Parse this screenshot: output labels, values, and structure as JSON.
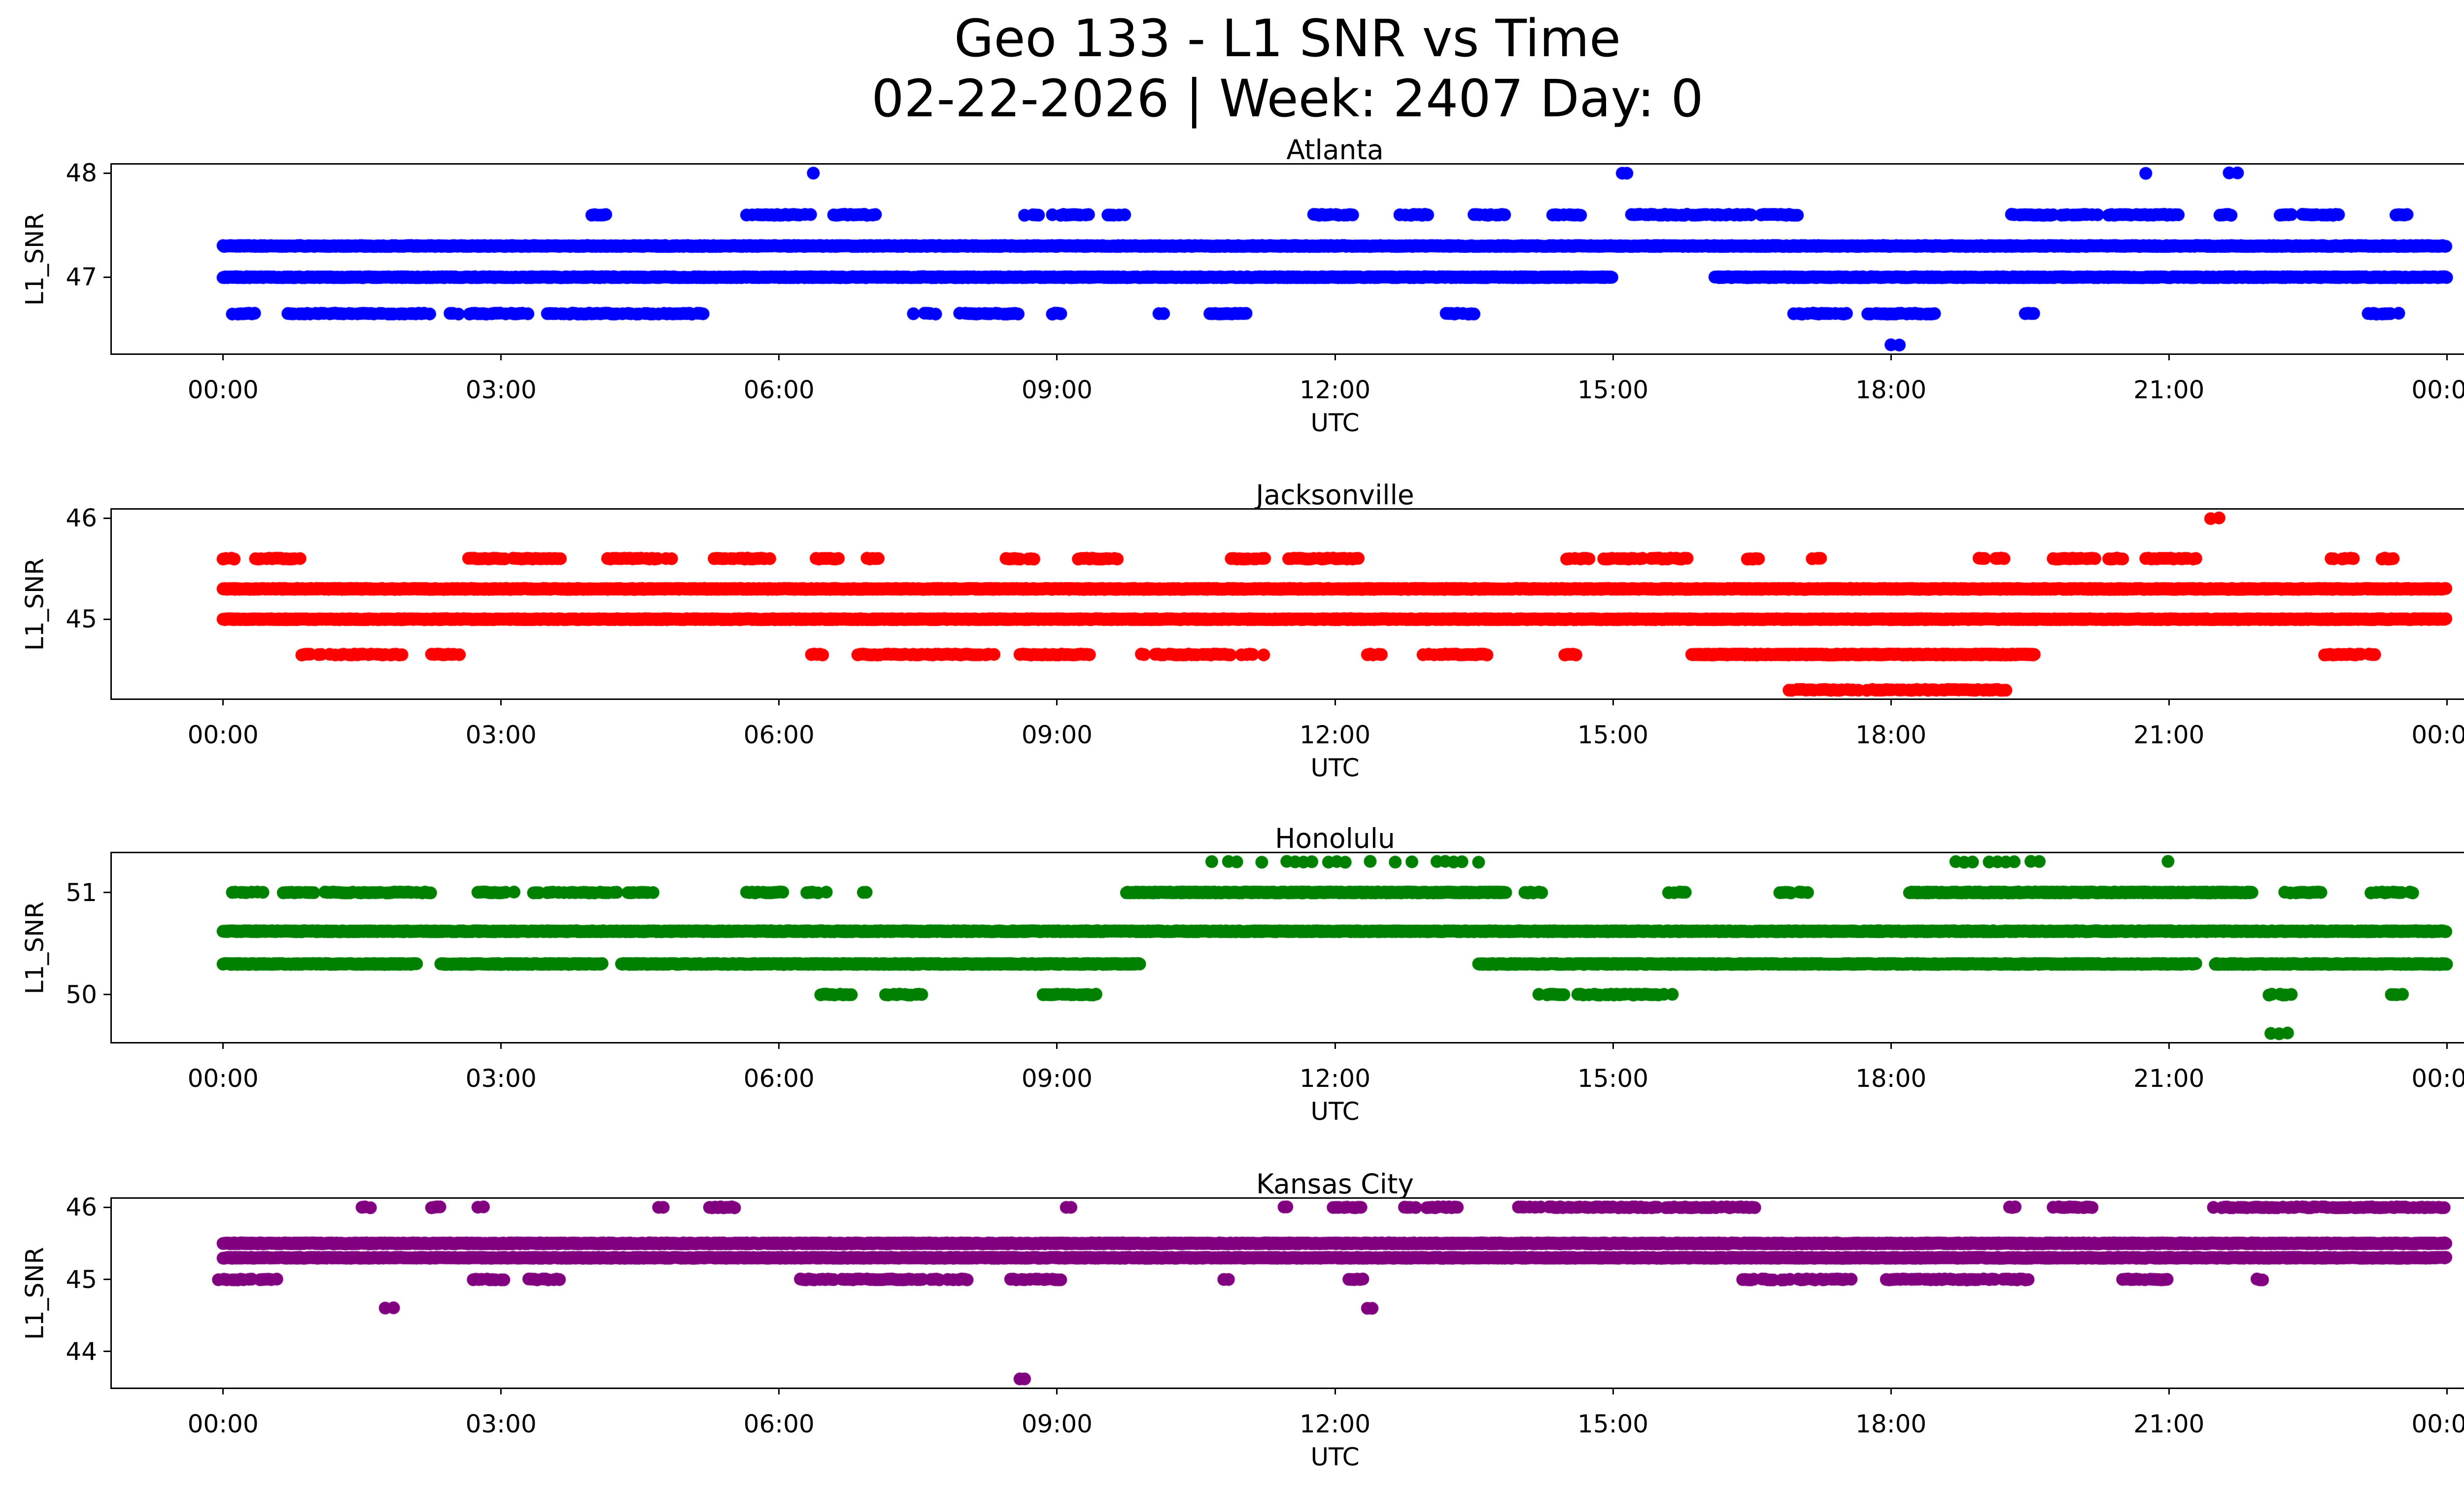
{
  "figure": {
    "title_line1": "Geo 133 - L1 SNR vs Time",
    "title_line2": "02-22-2026 | Week: 2407 Day: 0",
    "background": "#ffffff",
    "text_color": "#000000"
  },
  "chart_data": [
    {
      "type": "scatter",
      "title": "Atlanta",
      "color": "#0000ff",
      "xlabel": "UTC",
      "ylabel": "L1_SNR",
      "xlim": [
        -1.2,
        25.2
      ],
      "ylim": [
        46.2675,
        48.0825
      ],
      "yticks": [
        47,
        48
      ],
      "xticks": [
        0,
        3,
        6,
        9,
        12,
        15,
        18,
        21,
        24
      ],
      "xtick_labels": [
        "00:00",
        "03:00",
        "06:00",
        "09:00",
        "12:00",
        "15:00",
        "18:00",
        "21:00",
        "00:00"
      ],
      "grid": false,
      "legend": false,
      "bands": [
        {
          "snr": 47.3,
          "density": "dense",
          "segments": [
            [
              0,
              24
            ]
          ]
        },
        {
          "snr": 47.0,
          "density": "dense",
          "segments": [
            [
              0,
              15.0
            ],
            [
              16.1,
              24
            ]
          ]
        },
        {
          "snr": 47.6,
          "density": "med",
          "segments": [
            [
              3.95,
              4.15
            ],
            [
              5.65,
              6.35
            ],
            [
              6.5,
              7.05
            ],
            [
              8.65,
              8.8
            ],
            [
              8.95,
              9.35
            ],
            [
              9.55,
              9.75
            ],
            [
              11.65,
              12.2
            ],
            [
              12.7,
              13.0
            ],
            [
              13.5,
              13.85
            ],
            [
              14.35,
              14.65
            ],
            [
              15.2,
              16.5
            ],
            [
              16.6,
              17.05
            ],
            [
              19.3,
              21.15
            ],
            [
              21.55,
              21.7
            ],
            [
              22.2,
              22.85
            ],
            [
              23.45,
              23.6
            ]
          ]
        },
        {
          "snr": 48.0,
          "density": "scatter",
          "segments": [
            [
              6.28,
              6.4
            ],
            [
              14.75,
              14.95
            ],
            [
              15.05,
              15.15
            ],
            [
              20.75,
              20.95
            ],
            [
              21.65,
              21.78
            ]
          ]
        },
        {
          "snr": 46.65,
          "density": "med",
          "segments": [
            [
              0.1,
              0.35
            ],
            [
              0.7,
              2.25
            ],
            [
              2.45,
              3.3
            ],
            [
              3.5,
              5.2
            ],
            [
              7.45,
              7.7
            ],
            [
              7.95,
              8.6
            ],
            [
              8.95,
              9.05
            ],
            [
              10.05,
              10.15
            ],
            [
              10.65,
              11.05
            ],
            [
              13.2,
              13.55
            ],
            [
              16.95,
              17.55
            ],
            [
              17.75,
              18.5
            ],
            [
              19.45,
              19.55
            ],
            [
              23.15,
              23.5
            ]
          ]
        },
        {
          "snr": 46.35,
          "density": "scatter",
          "segments": [
            [
              18.0,
              18.1
            ]
          ]
        }
      ]
    },
    {
      "type": "scatter",
      "title": "Jacksonville",
      "color": "#ff0000",
      "xlabel": "UTC",
      "ylabel": "L1_SNR",
      "xlim": [
        -1.2,
        25.2
      ],
      "ylim": [
        44.215,
        46.085
      ],
      "yticks": [
        45,
        46
      ],
      "xticks": [
        0,
        3,
        6,
        9,
        12,
        15,
        18,
        21,
        24
      ],
      "xtick_labels": [
        "00:00",
        "03:00",
        "06:00",
        "09:00",
        "12:00",
        "15:00",
        "18:00",
        "21:00",
        "00:00"
      ],
      "grid": false,
      "legend": false,
      "bands": [
        {
          "snr": 45.3,
          "density": "dense",
          "segments": [
            [
              0,
              24
            ]
          ]
        },
        {
          "snr": 45.0,
          "density": "dense",
          "segments": [
            [
              0,
              24
            ]
          ]
        },
        {
          "snr": 45.6,
          "density": "med",
          "segments": [
            [
              0,
              0.15
            ],
            [
              0.35,
              0.85
            ],
            [
              2.65,
              3.65
            ],
            [
              4.15,
              4.85
            ],
            [
              5.3,
              5.95
            ],
            [
              6.4,
              6.65
            ],
            [
              6.95,
              7.1
            ],
            [
              8.45,
              8.75
            ],
            [
              9.2,
              9.65
            ],
            [
              10.85,
              11.25
            ],
            [
              11.5,
              12.25
            ],
            [
              14.5,
              14.75
            ],
            [
              14.9,
              15.8
            ],
            [
              16.45,
              16.6
            ],
            [
              17.15,
              17.3
            ],
            [
              18.95,
              19.25
            ],
            [
              19.75,
              20.55
            ],
            [
              20.75,
              21.35
            ],
            [
              22.75,
              23.05
            ],
            [
              23.3,
              23.45
            ]
          ]
        },
        {
          "snr": 46.0,
          "density": "scatter",
          "segments": [
            [
              21.45,
              21.55
            ]
          ]
        },
        {
          "snr": 44.65,
          "density": "dense",
          "segments": [
            [
              15.85,
              19.55
            ]
          ]
        },
        {
          "snr": 44.65,
          "density": "med",
          "segments": [
            [
              0.85,
              1.95
            ],
            [
              2.25,
              2.55
            ],
            [
              6.35,
              6.5
            ],
            [
              6.85,
              8.35
            ],
            [
              8.6,
              9.35
            ],
            [
              9.85,
              11.25
            ],
            [
              12.35,
              12.5
            ],
            [
              12.95,
              13.65
            ],
            [
              14.45,
              14.6
            ],
            [
              22.65,
              23.25
            ]
          ]
        },
        {
          "snr": 44.3,
          "density": "med",
          "segments": [
            [
              16.9,
              19.25
            ]
          ]
        }
      ]
    },
    {
      "type": "scatter",
      "title": "Honolulu",
      "color": "#008000",
      "xlabel": "UTC",
      "ylabel": "L1_SNR",
      "xlim": [
        -1.2,
        25.2
      ],
      "ylim": [
        49.536,
        51.384
      ],
      "yticks": [
        50,
        51
      ],
      "xticks": [
        0,
        3,
        6,
        9,
        12,
        15,
        18,
        21,
        24
      ],
      "xtick_labels": [
        "00:00",
        "03:00",
        "06:00",
        "09:00",
        "12:00",
        "15:00",
        "18:00",
        "21:00",
        "00:00"
      ],
      "grid": false,
      "legend": false,
      "bands": [
        {
          "snr": 50.62,
          "density": "dense",
          "segments": [
            [
              0,
              24
            ]
          ]
        },
        {
          "snr": 50.3,
          "density": "dense",
          "segments": [
            [
              0,
              2.1
            ],
            [
              2.35,
              4.1
            ],
            [
              4.3,
              9.9
            ],
            [
              13.55,
              21.3
            ],
            [
              21.5,
              24
            ]
          ]
        },
        {
          "snr": 51.0,
          "density": "dense",
          "segments": [
            [
              9.75,
              13.85
            ],
            [
              18.2,
              21.9
            ]
          ]
        },
        {
          "snr": 51.0,
          "density": "med",
          "segments": [
            [
              0.1,
              0.5
            ],
            [
              0.65,
              2.25
            ],
            [
              2.75,
              3.15
            ],
            [
              3.35,
              4.65
            ],
            [
              5.65,
              6.05
            ],
            [
              6.3,
              6.55
            ],
            [
              6.85,
              6.95
            ],
            [
              14.05,
              14.25
            ],
            [
              15.6,
              15.8
            ],
            [
              16.8,
              17.15
            ],
            [
              22.25,
              22.65
            ],
            [
              23.15,
              23.65
            ]
          ]
        },
        {
          "snr": 51.3,
          "density": "scatter",
          "segments": [
            [
              10.4,
              13.6
            ],
            [
              18.7,
              19.6
            ],
            [
              20.9,
              21.1
            ]
          ]
        },
        {
          "snr": 50.0,
          "density": "med",
          "segments": [
            [
              6.45,
              6.85
            ],
            [
              7.15,
              7.55
            ],
            [
              8.85,
              9.45
            ],
            [
              14.2,
              15.65
            ],
            [
              22.05,
              22.35
            ],
            [
              23.4,
              23.55
            ]
          ]
        },
        {
          "snr": 49.62,
          "density": "scatter",
          "segments": [
            [
              22.1,
              22.3
            ]
          ]
        }
      ]
    },
    {
      "type": "scatter",
      "title": "Kansas City",
      "color": "#800080",
      "xlabel": "UTC",
      "ylabel": "L1_SNR",
      "xlim": [
        -1.2,
        25.2
      ],
      "ylim": [
        43.501,
        46.119
      ],
      "yticks": [
        44,
        45,
        46
      ],
      "xticks": [
        0,
        3,
        6,
        9,
        12,
        15,
        18,
        21,
        24
      ],
      "xtick_labels": [
        "00:00",
        "03:00",
        "06:00",
        "09:00",
        "12:00",
        "15:00",
        "18:00",
        "21:00",
        "00:00"
      ],
      "grid": false,
      "legend": false,
      "bands": [
        {
          "snr": 45.5,
          "density": "dense",
          "segments": [
            [
              0,
              24
            ]
          ]
        },
        {
          "snr": 45.3,
          "density": "dense",
          "segments": [
            [
              0,
              24
            ]
          ]
        },
        {
          "snr": 45.0,
          "density": "med",
          "segments": [
            [
              -0.05,
              0.6
            ],
            [
              2.7,
              3.05
            ],
            [
              3.3,
              3.65
            ],
            [
              6.2,
              8.05
            ],
            [
              8.5,
              9.05
            ],
            [
              10.75,
              10.85
            ],
            [
              12.15,
              12.3
            ],
            [
              16.4,
              17.6
            ],
            [
              17.95,
              19.5
            ],
            [
              20.5,
              21.0
            ],
            [
              21.95,
              22.05
            ]
          ]
        },
        {
          "snr": 46.0,
          "density": "med",
          "segments": [
            [
              1.5,
              1.6
            ],
            [
              2.25,
              2.35
            ],
            [
              2.75,
              2.85
            ],
            [
              4.65,
              4.75
            ],
            [
              5.25,
              5.55
            ],
            [
              9.05,
              9.15
            ],
            [
              11.45,
              11.55
            ],
            [
              11.95,
              12.4
            ],
            [
              12.75,
              13.35
            ],
            [
              13.95,
              16.55
            ],
            [
              19.25,
              19.35
            ],
            [
              19.75,
              20.2
            ],
            [
              21.45,
              24.0
            ]
          ]
        },
        {
          "snr": 44.6,
          "density": "scatter",
          "segments": [
            [
              1.75,
              1.85
            ],
            [
              12.3,
              12.4
            ]
          ]
        },
        {
          "snr": 43.62,
          "density": "scatter",
          "segments": [
            [
              8.55,
              8.65
            ]
          ]
        }
      ]
    }
  ]
}
